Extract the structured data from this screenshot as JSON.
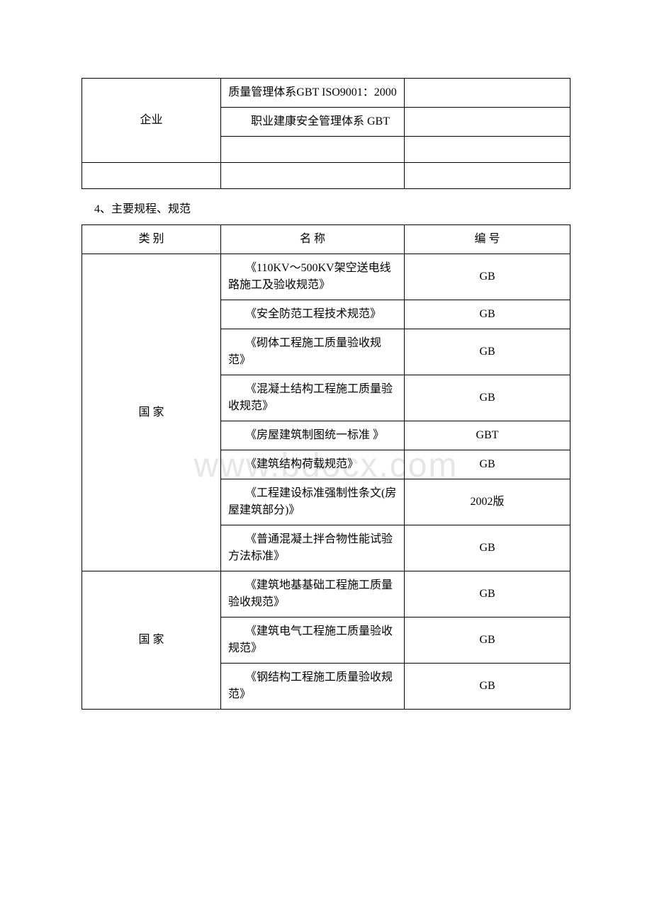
{
  "watermark": "www.bdocx.com",
  "table1": {
    "category": "企业",
    "rows": [
      {
        "name": "质量管理体系GBT ISO9001：2000",
        "num": ""
      },
      {
        "name": "　　职业建康安全管理体系 GBT",
        "num": ""
      }
    ]
  },
  "sectionHeading": "4、主要规程、规范",
  "table2": {
    "header": {
      "cat": "类 别",
      "name": "名 称",
      "num": "编 号"
    },
    "groups": [
      {
        "category": "国 家",
        "rows": [
          {
            "name": "　　《110KV～500KV架空送电线路施工及验收规范》",
            "num": "GB"
          },
          {
            "name": "　　《安全防范工程技术规范》",
            "num": "GB"
          },
          {
            "name": "　　《砌体工程施工质量验收规范》",
            "num": "GB"
          },
          {
            "name": "　　《混凝土结构工程施工质量验收规范》",
            "num": "GB"
          },
          {
            "name": "　　《房屋建筑制图统一标准 》",
            "num": "GBT"
          },
          {
            "name": "　　《建筑结构荷载规范》",
            "num": "GB"
          },
          {
            "name": "　　《工程建设标准强制性条文(房屋建筑部分)》",
            "num": "2002版"
          },
          {
            "name": "　　《普通混凝土拌合物性能试验方法标准》",
            "num": "GB"
          }
        ]
      },
      {
        "category": "国 家",
        "rows": [
          {
            "name": "　　《建筑地基基础工程施工质量验收规范》",
            "num": "GB"
          },
          {
            "name": "　　《建筑电气工程施工质量验收规范》",
            "num": "GB"
          },
          {
            "name": "　　《钢结构工程施工质量验收规范》",
            "num": "GB"
          }
        ]
      }
    ]
  }
}
